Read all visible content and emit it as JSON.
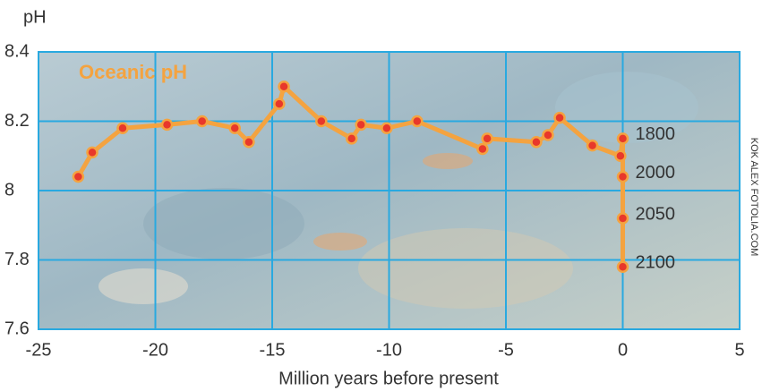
{
  "chart_data": {
    "type": "line",
    "title": "Oceanic pH",
    "y_label": "pH",
    "x_label": "Million years before present",
    "credit": "KOK ALEX FOTOLIA.COM",
    "series": [
      {
        "color": "#f4a340",
        "marker_color": "#e8382b",
        "x": [
          -23.3,
          -22.7,
          -21.4,
          -19.5,
          -18.0,
          -16.6,
          -16.0,
          -14.7,
          -14.5,
          -12.9,
          -11.6,
          -11.2,
          -10.1,
          -8.8,
          -6.0,
          -5.8,
          -3.7,
          -3.2,
          -2.7,
          -1.3,
          -0.1,
          0,
          0,
          0,
          0
        ],
        "values": [
          8.04,
          8.11,
          8.18,
          8.19,
          8.2,
          8.18,
          8.14,
          8.25,
          8.3,
          8.2,
          8.15,
          8.19,
          8.18,
          8.2,
          8.12,
          8.15,
          8.14,
          8.16,
          8.21,
          8.13,
          8.1,
          8.15,
          8.04,
          7.92,
          7.78
        ]
      }
    ],
    "point_labels": [
      "1800",
      "2000",
      "2050",
      "2100"
    ],
    "xlim": [
      -25,
      5
    ],
    "xticks": [
      -25,
      -20,
      -15,
      -10,
      -5,
      0,
      5
    ],
    "ylim": [
      7.6,
      8.4
    ],
    "yticks": [
      7.6,
      7.8,
      8,
      8.2,
      8.4
    ],
    "grid": true,
    "grid_color": "#29a9e0"
  }
}
